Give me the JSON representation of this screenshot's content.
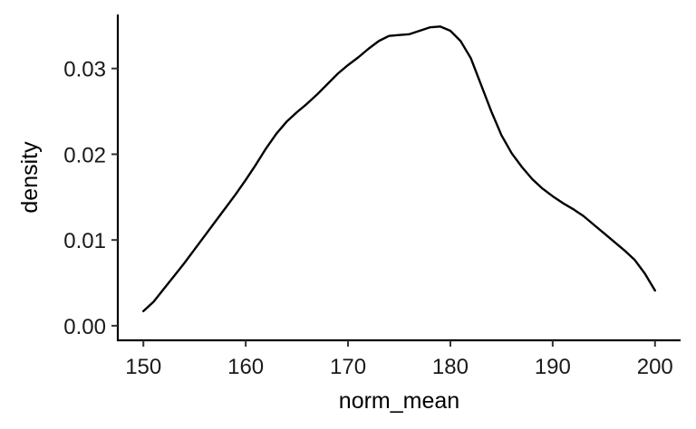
{
  "chart_data": {
    "type": "line",
    "title": "",
    "xlabel": "norm_mean",
    "ylabel": "density",
    "xlim": [
      147.5,
      202.5
    ],
    "ylim": [
      -0.0017,
      0.0363
    ],
    "x_ticks": [
      150,
      160,
      170,
      180,
      190,
      200
    ],
    "x_tick_labels": [
      "150",
      "160",
      "170",
      "180",
      "190",
      "200"
    ],
    "y_ticks": [
      0.0,
      0.01,
      0.02,
      0.03
    ],
    "y_tick_labels": [
      "0.00",
      "0.01",
      "0.02",
      "0.03"
    ],
    "grid": false,
    "legend": "none",
    "line_color": "#000000",
    "series": [
      {
        "x": [
          150,
          151,
          152,
          153,
          154,
          155,
          156,
          157,
          158,
          159,
          160,
          161,
          162,
          163,
          164,
          165,
          166,
          167,
          168,
          169,
          170,
          171,
          172,
          173,
          174,
          175,
          176,
          177,
          178,
          179,
          180,
          181,
          182,
          183,
          184,
          185,
          186,
          187,
          188,
          189,
          190,
          191,
          192,
          193,
          194,
          195,
          196,
          197,
          198,
          199,
          200
        ],
        "y": [
          0.0017,
          0.0028,
          0.0043,
          0.0058,
          0.0073,
          0.0089,
          0.0105,
          0.0121,
          0.0137,
          0.0153,
          0.017,
          0.0188,
          0.0207,
          0.0224,
          0.0238,
          0.0249,
          0.0259,
          0.027,
          0.0282,
          0.0294,
          0.0304,
          0.0313,
          0.0323,
          0.0332,
          0.0338,
          0.0339,
          0.034,
          0.0344,
          0.0348,
          0.0349,
          0.0344,
          0.0332,
          0.0312,
          0.0281,
          0.025,
          0.0222,
          0.0201,
          0.0185,
          0.0171,
          0.016,
          0.0151,
          0.0143,
          0.0136,
          0.0128,
          0.0118,
          0.0108,
          0.0098,
          0.0088,
          0.0077,
          0.0061,
          0.0041
        ]
      }
    ]
  }
}
